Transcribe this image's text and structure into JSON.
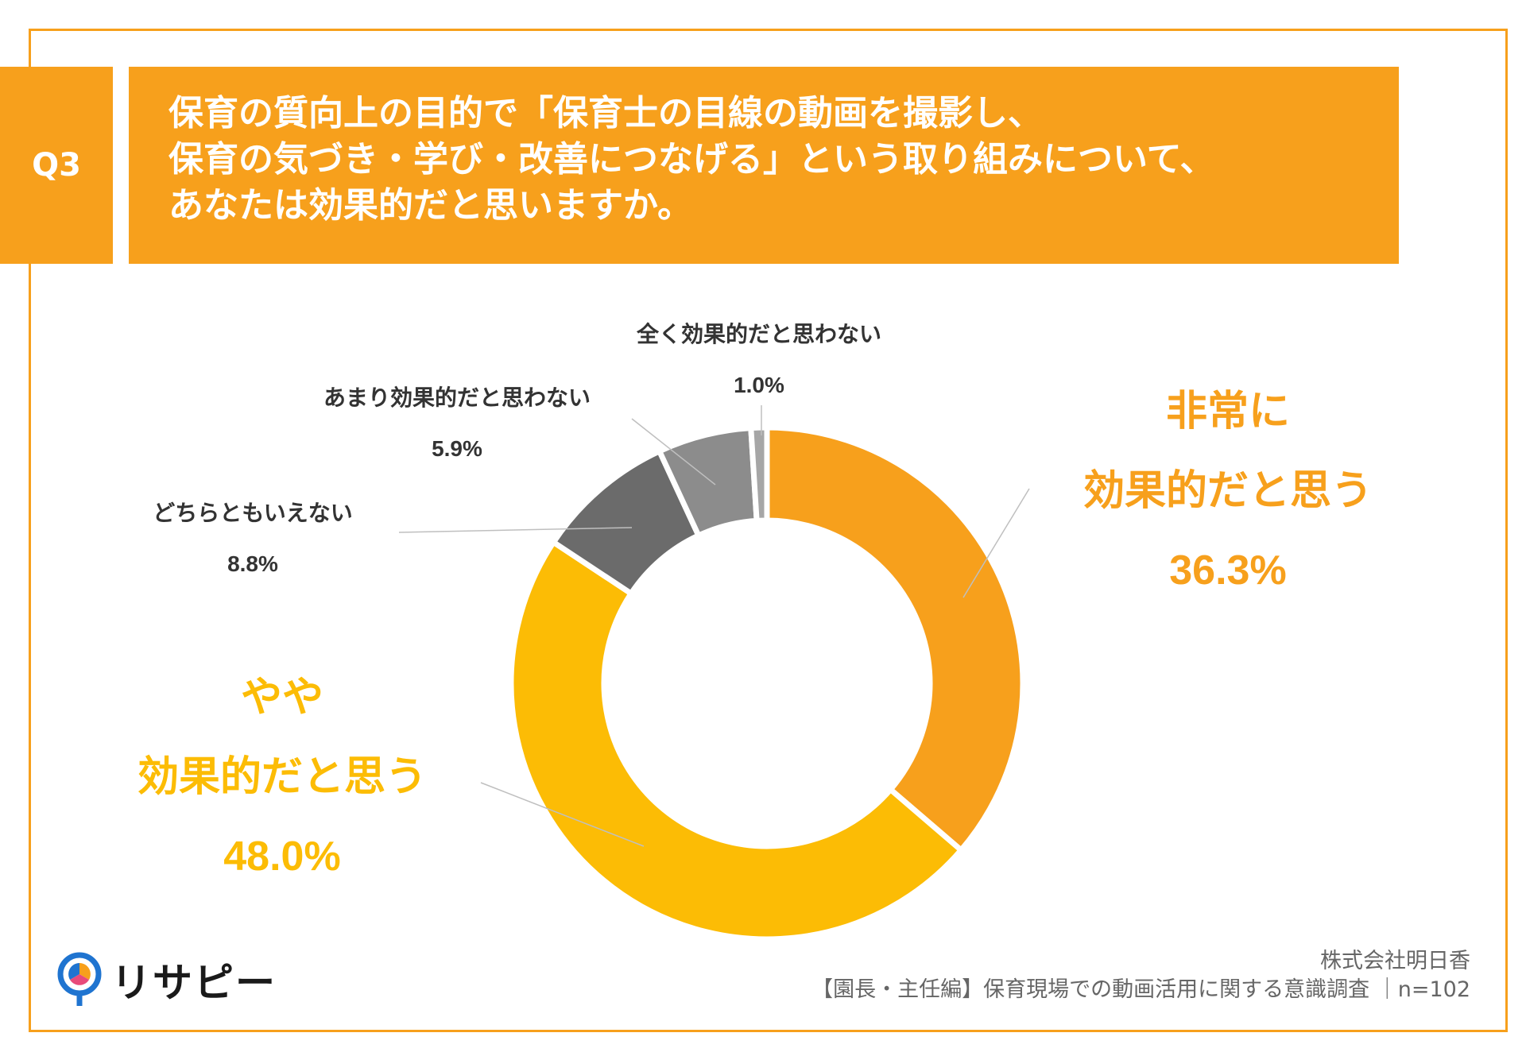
{
  "question": {
    "badge": "Q3",
    "title_lines": [
      "保育の質向上の目的で「保育士の目線の動画を撮影し、",
      "保育の気づき・学び・改善につなげる」という取り組みについて、",
      "あなたは効果的だと思いますか。"
    ]
  },
  "chart_data": {
    "type": "pie",
    "style": "donut",
    "categories": [
      "非常に効果的だと思う",
      "やや効果的だと思う",
      "どちらともいえない",
      "あまり効果的だと思わない",
      "全く効果的だと思わない"
    ],
    "values": [
      36.3,
      48.0,
      8.8,
      5.9,
      1.0
    ],
    "value_labels": [
      "36.3%",
      "48.0%",
      "8.8%",
      "5.9%",
      "1.0%"
    ],
    "label_lines": [
      [
        "非常に",
        "効果的だと思う"
      ],
      [
        "やや",
        "効果的だと思う"
      ],
      [
        "どちらともいえない"
      ],
      [
        "あまり効果的だと思わない"
      ],
      [
        "全く効果的だと思わない"
      ]
    ],
    "colors": [
      "#f7a01c",
      "#fcbc05",
      "#6b6b6b",
      "#8c8c8c",
      "#a6a6a6"
    ],
    "label_colors": [
      "#f7a01c",
      "#fcbc05",
      "#333333",
      "#333333",
      "#333333"
    ]
  },
  "footer": {
    "company": "株式会社明日香",
    "source": "【園長・主任編】保育現場での動画活用に関する意識調査 ｜n=102"
  },
  "logo": {
    "text": "リサピー",
    "colors": [
      "#1f74d0",
      "#f7a01c",
      "#e84b7a"
    ]
  }
}
